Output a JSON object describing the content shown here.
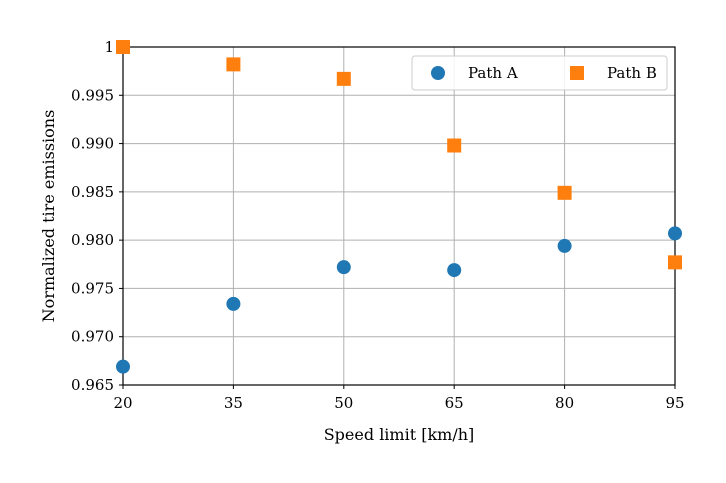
{
  "chart_data": {
    "type": "scatter",
    "title": "",
    "xlabel": "Speed limit [km/h]",
    "ylabel": "Normalized tire emissions",
    "x": [
      20,
      35,
      50,
      65,
      80,
      95
    ],
    "x_tick_labels": [
      "20",
      "35",
      "50",
      "65",
      "80",
      "95"
    ],
    "xlim": [
      20,
      95
    ],
    "ylim": [
      0.965,
      1.0
    ],
    "y_ticks": [
      0.965,
      0.97,
      0.975,
      0.98,
      0.985,
      0.99,
      0.995,
      1.0
    ],
    "y_tick_labels": [
      "0.965",
      "0.970",
      "0.975",
      "0.980",
      "0.985",
      "0.990",
      "0.995",
      "1"
    ],
    "grid": true,
    "legend_position": "top-right",
    "series": [
      {
        "name": "Path A",
        "marker": "circle",
        "color": "#1f77b4",
        "values": [
          0.9669,
          0.9734,
          0.9772,
          0.9769,
          0.9794,
          0.9807
        ]
      },
      {
        "name": "Path B",
        "marker": "square",
        "color": "#ff7f0e",
        "values": [
          1.0,
          0.9982,
          0.9967,
          0.9898,
          0.9849,
          0.9777
        ]
      }
    ]
  }
}
